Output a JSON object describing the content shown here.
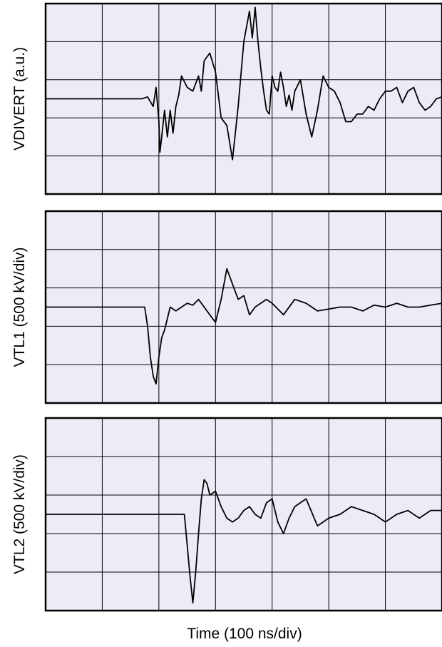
{
  "chart_data": {
    "type": "line",
    "xlabel": "Time (100 ns/div)",
    "x_divisions": 7,
    "y_divisions": 5,
    "grid": true,
    "panels": [
      {
        "ylabel": "VDIVERT (a.u.)",
        "ylim": [
          -2.5,
          2.5
        ],
        "series": [
          {
            "x": [
              0,
              1.2,
              1.5,
              1.7,
              1.8,
              1.9,
              1.95,
              2.0,
              2.02,
              2.05,
              2.1,
              2.15,
              2.2,
              2.25,
              2.3,
              2.35,
              2.4,
              2.5,
              2.6,
              2.7,
              2.75,
              2.8,
              2.9,
              3.0,
              3.1,
              3.2,
              3.3,
              3.4,
              3.5,
              3.6,
              3.65,
              3.7,
              3.75,
              3.8,
              3.85,
              3.9,
              3.95,
              4.0,
              4.05,
              4.1,
              4.15,
              4.2,
              4.25,
              4.3,
              4.35,
              4.4,
              4.5,
              4.6,
              4.7,
              4.8,
              4.9,
              5.0,
              5.1,
              5.2,
              5.3,
              5.4,
              5.5,
              5.6,
              5.7,
              5.8,
              5.9,
              6.0,
              6.1,
              6.2,
              6.3,
              6.4,
              6.5,
              6.6,
              6.7,
              6.8,
              6.9,
              7.0
            ],
            "y": [
              0,
              0,
              0,
              0,
              0.05,
              -0.2,
              0.3,
              -0.6,
              -1.4,
              -1.0,
              -0.3,
              -1.0,
              -0.3,
              -0.9,
              -0.2,
              0.1,
              0.6,
              0.3,
              0.2,
              0.6,
              0.2,
              1.0,
              1.2,
              0.7,
              -0.5,
              -0.7,
              -1.6,
              -0.2,
              1.5,
              2.3,
              1.6,
              2.4,
              1.5,
              0.8,
              0.2,
              -0.3,
              -0.4,
              0.6,
              0.3,
              0.2,
              0.7,
              0.3,
              -0.2,
              0.1,
              -0.3,
              0.2,
              0.5,
              -0.4,
              -1.0,
              -0.3,
              0.6,
              0.3,
              0.2,
              -0.1,
              -0.6,
              -0.6,
              -0.4,
              -0.4,
              -0.2,
              -0.3,
              0.0,
              0.2,
              0.2,
              0.3,
              -0.1,
              0.2,
              0.3,
              -0.1,
              -0.3,
              -0.2,
              0.0,
              0.05
            ]
          }
        ]
      },
      {
        "ylabel": "VTL1 (500 kV/div)",
        "ylim": [
          -2.5,
          2.5
        ],
        "series": [
          {
            "x": [
              0,
              1.5,
              1.75,
              1.8,
              1.85,
              1.9,
              1.95,
              2.0,
              2.05,
              2.1,
              2.15,
              2.2,
              2.3,
              2.4,
              2.5,
              2.6,
              2.7,
              2.8,
              2.9,
              3.0,
              3.1,
              3.2,
              3.3,
              3.4,
              3.5,
              3.6,
              3.7,
              3.8,
              3.9,
              4.0,
              4.2,
              4.4,
              4.6,
              4.8,
              5.0,
              5.2,
              5.4,
              5.6,
              5.8,
              6.0,
              6.2,
              6.4,
              6.6,
              6.8,
              7.0
            ],
            "y": [
              0,
              0,
              0,
              -0.5,
              -1.3,
              -1.8,
              -2.0,
              -1.3,
              -0.8,
              -0.6,
              -0.3,
              0.0,
              -0.1,
              0.0,
              0.1,
              0.05,
              0.2,
              0.0,
              -0.2,
              -0.4,
              0.2,
              1.0,
              0.6,
              0.2,
              0.3,
              -0.2,
              0.0,
              0.1,
              0.2,
              0.1,
              -0.2,
              0.2,
              0.1,
              -0.1,
              -0.05,
              0.0,
              0.0,
              -0.1,
              0.05,
              0.0,
              0.1,
              0.0,
              0.0,
              0.05,
              0.1
            ]
          }
        ]
      },
      {
        "ylabel": "VTL2 (500 kV/div)",
        "ylim": [
          -2.5,
          2.5
        ],
        "series": [
          {
            "x": [
              0,
              2.4,
              2.45,
              2.5,
              2.55,
              2.6,
              2.65,
              2.7,
              2.75,
              2.8,
              2.85,
              2.9,
              3.0,
              3.1,
              3.2,
              3.3,
              3.4,
              3.5,
              3.6,
              3.7,
              3.8,
              3.9,
              4.0,
              4.1,
              4.2,
              4.3,
              4.4,
              4.5,
              4.6,
              4.8,
              5.0,
              5.2,
              5.4,
              5.6,
              5.8,
              6.0,
              6.2,
              6.4,
              6.6,
              6.8,
              7.0
            ],
            "y": [
              0,
              0,
              0,
              -0.8,
              -1.6,
              -2.3,
              -1.5,
              -0.5,
              0.4,
              0.9,
              0.8,
              0.5,
              0.6,
              0.2,
              -0.1,
              -0.2,
              -0.1,
              0.1,
              0.2,
              0.0,
              -0.1,
              0.3,
              0.4,
              -0.2,
              -0.5,
              -0.1,
              0.2,
              0.3,
              0.4,
              -0.3,
              -0.1,
              0.0,
              0.2,
              0.1,
              0.0,
              -0.2,
              0.0,
              0.1,
              -0.1,
              0.1,
              0.1
            ]
          }
        ]
      }
    ]
  }
}
